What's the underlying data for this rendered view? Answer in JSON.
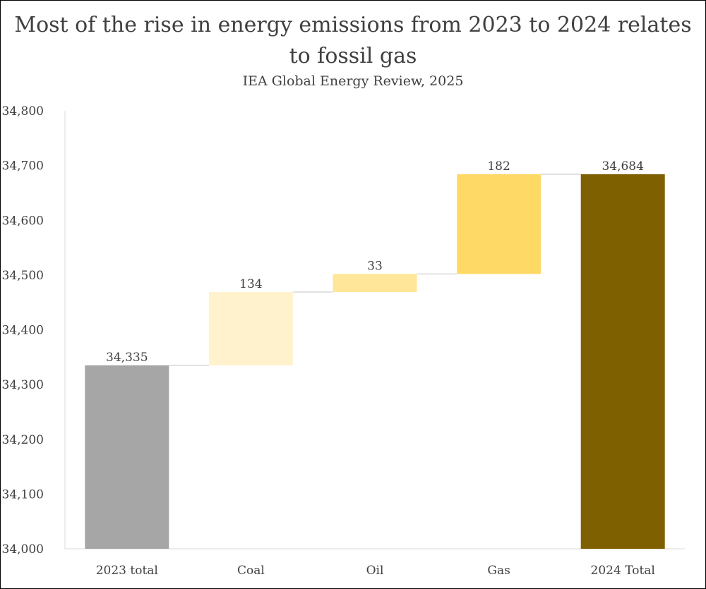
{
  "header": {
    "title_line1": "Most of the rise in energy emissions from 2023 to 2024 relates",
    "title_line2": "to fossil gas",
    "subtitle": "IEA Global Energy Review, 2025"
  },
  "chart_data": {
    "type": "waterfall",
    "title": "Most of the rise in energy emissions from 2023 to 2024 relates to fossil gas",
    "subtitle": "IEA Global Energy Review, 2025",
    "xlabel": "",
    "ylabel": "",
    "ylim": [
      34000,
      34800
    ],
    "ytick_step": 100,
    "y_tick_labels": [
      "34,000",
      "34,100",
      "34,200",
      "34,300",
      "34,400",
      "34,500",
      "34,600",
      "34,700",
      "34,800"
    ],
    "grid": false,
    "legend": "none",
    "categories": [
      "2023 total",
      "Coal",
      "Oil",
      "Gas",
      "2024 Total"
    ],
    "bars": [
      {
        "category": "2023 total",
        "kind": "total",
        "value": 34335,
        "label": "34,335",
        "color": "#a6a6a6"
      },
      {
        "category": "Coal",
        "kind": "delta",
        "value": 134,
        "label": "134",
        "color": "#fff2cc"
      },
      {
        "category": "Oil",
        "kind": "delta",
        "value": 33,
        "label": "33",
        "color": "#ffe699"
      },
      {
        "category": "Gas",
        "kind": "delta",
        "value": 182,
        "label": "182",
        "color": "#ffd966"
      },
      {
        "category": "2024 Total",
        "kind": "total",
        "value": 34684,
        "label": "34,684",
        "color": "#7f6000"
      }
    ],
    "connector_color": "#d9d9d9",
    "axis_color": "#d9d9d9"
  }
}
